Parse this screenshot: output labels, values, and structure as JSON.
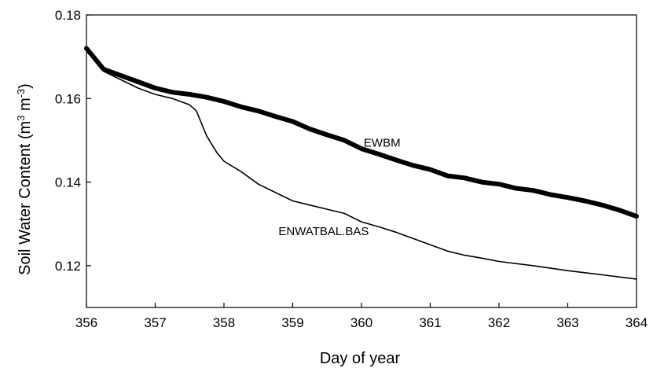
{
  "chart_data": {
    "type": "line",
    "xlabel": "Day of year",
    "ylabel": {
      "pre": "Soil Water Content (m",
      "sup1": "3",
      "mid": " m",
      "sup2": "-3",
      "post": ")"
    },
    "xlim": [
      356,
      364
    ],
    "ylim": [
      0.11,
      0.18
    ],
    "xticks": [
      356,
      357,
      358,
      359,
      360,
      361,
      362,
      363,
      364
    ],
    "xtick_labels": [
      "356",
      "357",
      "358",
      "359",
      "360",
      "361",
      "362",
      "363",
      "364"
    ],
    "yticks": [
      0.12,
      0.14,
      0.16,
      0.18
    ],
    "ytick_labels": [
      "0.12",
      "0.14",
      "0.16",
      "0.18"
    ],
    "grid": false,
    "annotations": [
      {
        "text": "EWBM",
        "x": 360.3,
        "y": 0.1485
      },
      {
        "text": "ENWATBAL.BAS",
        "x": 359.45,
        "y": 0.1273
      }
    ],
    "series": [
      {
        "label": "EWBM",
        "color": "#000000",
        "style": "thick",
        "x": [
          356.0,
          356.25,
          356.5,
          356.75,
          357.0,
          357.25,
          357.5,
          357.75,
          358.0,
          358.25,
          358.5,
          358.75,
          359.0,
          359.25,
          359.5,
          359.75,
          360.0,
          360.25,
          360.5,
          360.75,
          361.0,
          361.25,
          361.5,
          361.75,
          362.0,
          362.25,
          362.5,
          362.75,
          363.0,
          363.25,
          363.5,
          363.75,
          364.0
        ],
        "y": [
          0.172,
          0.167,
          0.1655,
          0.164,
          0.1625,
          0.1615,
          0.161,
          0.1603,
          0.1593,
          0.158,
          0.157,
          0.1557,
          0.1545,
          0.1527,
          0.1513,
          0.15,
          0.148,
          0.1467,
          0.1453,
          0.144,
          0.143,
          0.1415,
          0.141,
          0.14,
          0.1395,
          0.1385,
          0.138,
          0.137,
          0.1363,
          0.1355,
          0.1345,
          0.1333,
          0.1318
        ]
      },
      {
        "label": "ENWATBAL.BAS",
        "color": "#000000",
        "style": "thin",
        "x": [
          356.0,
          356.25,
          356.5,
          356.75,
          357.0,
          357.25,
          357.5,
          357.6,
          357.75,
          357.9,
          358.0,
          358.25,
          358.5,
          358.75,
          359.0,
          359.25,
          359.5,
          359.75,
          360.0,
          360.25,
          360.5,
          360.75,
          361.0,
          361.25,
          361.5,
          361.75,
          362.0,
          362.5,
          363.0,
          363.5,
          364.0
        ],
        "y": [
          0.172,
          0.1665,
          0.1645,
          0.1625,
          0.161,
          0.16,
          0.1585,
          0.157,
          0.151,
          0.147,
          0.145,
          0.1425,
          0.1395,
          0.1375,
          0.1355,
          0.1345,
          0.1335,
          0.1325,
          0.1305,
          0.1293,
          0.128,
          0.1265,
          0.125,
          0.1235,
          0.1225,
          0.1218,
          0.121,
          0.12,
          0.1188,
          0.1178,
          0.1168
        ]
      }
    ]
  }
}
